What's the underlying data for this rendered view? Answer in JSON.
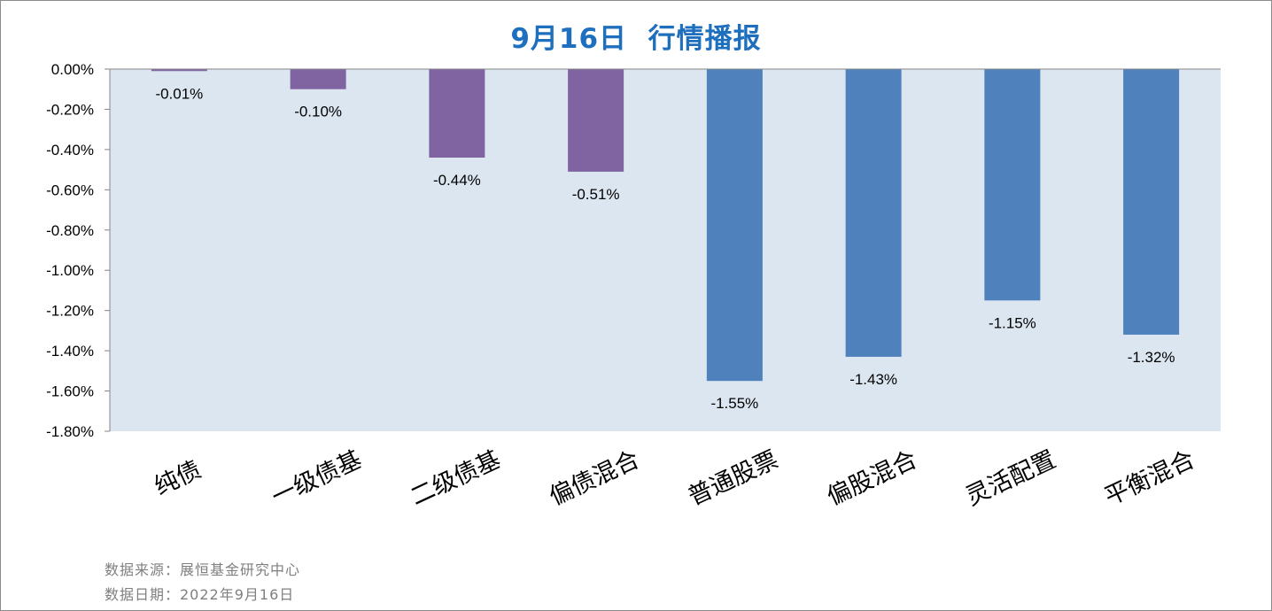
{
  "chart_data": {
    "type": "bar",
    "title": "9月16日  行情播报",
    "categories": [
      "纯债",
      "一级债基",
      "二级债基",
      "偏债混合",
      "普通股票",
      "偏股混合",
      "灵活配置",
      "平衡混合"
    ],
    "values": [
      -0.01,
      -0.1,
      -0.44,
      -0.51,
      -1.55,
      -1.43,
      -1.15,
      -1.32
    ],
    "value_labels": [
      "-0.01%",
      "-0.10%",
      "-0.44%",
      "-0.51%",
      "-1.55%",
      "-1.43%",
      "-1.15%",
      "-1.32%"
    ],
    "bar_colors": [
      "#8064a2",
      "#8064a2",
      "#8064a2",
      "#8064a2",
      "#4f81bd",
      "#4f81bd",
      "#4f81bd",
      "#4f81bd"
    ],
    "yticks": [
      0,
      -0.2,
      -0.4,
      -0.6,
      -0.8,
      -1.0,
      -1.2,
      -1.4,
      -1.6,
      -1.8
    ],
    "ytick_labels": [
      "0.00%",
      "-0.20%",
      "-0.40%",
      "-0.60%",
      "-0.80%",
      "-1.00%",
      "-1.20%",
      "-1.40%",
      "-1.60%",
      "-1.80%"
    ],
    "ylim": [
      -1.8,
      0
    ],
    "xlabel": "",
    "ylabel": "",
    "grid": false,
    "legend": "none",
    "plot_background": "#dce6f1",
    "title_color": "#1f6fbf"
  },
  "footer": {
    "source": "数据来源：展恒基金研究中心",
    "date": "数据日期：2022年9月16日"
  }
}
